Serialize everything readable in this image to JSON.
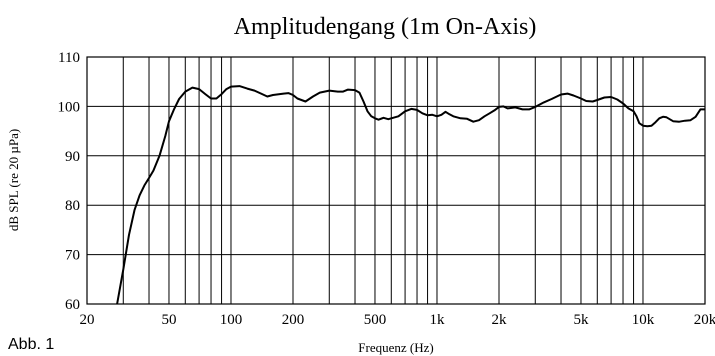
{
  "chart_data": {
    "type": "line",
    "title": "Amplitudengang (1m On-Axis)",
    "xlabel": "Frequenz (Hz)",
    "ylabel": "dB SPL (re 20 µPa)",
    "xscale": "log",
    "xlim": [
      20,
      20000
    ],
    "ylim": [
      60,
      110
    ],
    "grid": true,
    "xticks": [
      {
        "value": 20,
        "label": "20"
      },
      {
        "value": 50,
        "label": "50"
      },
      {
        "value": 100,
        "label": "100"
      },
      {
        "value": 200,
        "label": "200"
      },
      {
        "value": 500,
        "label": "500"
      },
      {
        "value": 1000,
        "label": "1k"
      },
      {
        "value": 2000,
        "label": "2k"
      },
      {
        "value": 5000,
        "label": "5k"
      },
      {
        "value": 10000,
        "label": "10k"
      },
      {
        "value": 20000,
        "label": "20k"
      }
    ],
    "yticks": [
      {
        "value": 60,
        "label": "60"
      },
      {
        "value": 70,
        "label": "70"
      },
      {
        "value": 80,
        "label": "80"
      },
      {
        "value": 90,
        "label": "90"
      },
      {
        "value": 100,
        "label": "100"
      },
      {
        "value": 110,
        "label": "110"
      }
    ],
    "series": [
      {
        "points": [
          [
            28,
            59.5
          ],
          [
            30,
            67
          ],
          [
            32,
            74
          ],
          [
            34,
            79
          ],
          [
            36,
            82
          ],
          [
            38,
            84
          ],
          [
            40,
            85.5
          ],
          [
            42,
            87
          ],
          [
            45,
            90
          ],
          [
            48,
            94
          ],
          [
            50,
            97
          ],
          [
            53,
            99.5
          ],
          [
            56,
            101.5
          ],
          [
            60,
            103
          ],
          [
            65,
            103.8
          ],
          [
            70,
            103.5
          ],
          [
            75,
            102.5
          ],
          [
            80,
            101.6
          ],
          [
            85,
            101.6
          ],
          [
            90,
            102.5
          ],
          [
            95,
            103.5
          ],
          [
            100,
            104
          ],
          [
            110,
            104.1
          ],
          [
            120,
            103.6
          ],
          [
            130,
            103.2
          ],
          [
            140,
            102.6
          ],
          [
            150,
            102
          ],
          [
            160,
            102.3
          ],
          [
            180,
            102.6
          ],
          [
            190,
            102.7
          ],
          [
            200,
            102.3
          ],
          [
            210,
            101.6
          ],
          [
            230,
            101
          ],
          [
            250,
            102
          ],
          [
            270,
            102.8
          ],
          [
            300,
            103.2
          ],
          [
            330,
            103
          ],
          [
            350,
            103
          ],
          [
            370,
            103.4
          ],
          [
            400,
            103.3
          ],
          [
            420,
            102.8
          ],
          [
            440,
            101
          ],
          [
            460,
            99
          ],
          [
            480,
            98
          ],
          [
            500,
            97.6
          ],
          [
            520,
            97.3
          ],
          [
            550,
            97.7
          ],
          [
            580,
            97.4
          ],
          [
            600,
            97.6
          ],
          [
            650,
            98
          ],
          [
            700,
            99
          ],
          [
            750,
            99.5
          ],
          [
            800,
            99.3
          ],
          [
            850,
            98.6
          ],
          [
            900,
            98.2
          ],
          [
            950,
            98.3
          ],
          [
            1000,
            98
          ],
          [
            1050,
            98.3
          ],
          [
            1100,
            98.9
          ],
          [
            1150,
            98.4
          ],
          [
            1200,
            98
          ],
          [
            1300,
            97.6
          ],
          [
            1400,
            97.5
          ],
          [
            1500,
            96.9
          ],
          [
            1600,
            97.2
          ],
          [
            1700,
            98
          ],
          [
            1800,
            98.6
          ],
          [
            1900,
            99.2
          ],
          [
            2000,
            99.9
          ],
          [
            2100,
            100
          ],
          [
            2200,
            99.6
          ],
          [
            2400,
            99.8
          ],
          [
            2600,
            99.4
          ],
          [
            2800,
            99.4
          ],
          [
            3000,
            99.9
          ],
          [
            3300,
            100.8
          ],
          [
            3600,
            101.5
          ],
          [
            4000,
            102.4
          ],
          [
            4300,
            102.6
          ],
          [
            4600,
            102.2
          ],
          [
            5000,
            101.6
          ],
          [
            5300,
            101.1
          ],
          [
            5700,
            101
          ],
          [
            6000,
            101.3
          ],
          [
            6500,
            101.8
          ],
          [
            7000,
            101.9
          ],
          [
            7500,
            101.4
          ],
          [
            8000,
            100.6
          ],
          [
            8500,
            99.6
          ],
          [
            9000,
            99
          ],
          [
            9300,
            98
          ],
          [
            9600,
            96.6
          ],
          [
            10000,
            96.1
          ],
          [
            10500,
            96
          ],
          [
            11000,
            96.1
          ],
          [
            11500,
            96.8
          ],
          [
            12000,
            97.6
          ],
          [
            12500,
            97.9
          ],
          [
            13000,
            97.8
          ],
          [
            14000,
            97
          ],
          [
            15000,
            96.9
          ],
          [
            16000,
            97.1
          ],
          [
            17000,
            97.2
          ],
          [
            18000,
            97.9
          ],
          [
            19000,
            99.4
          ],
          [
            20000,
            99.4
          ]
        ]
      }
    ]
  },
  "caption": "Abb. 1"
}
